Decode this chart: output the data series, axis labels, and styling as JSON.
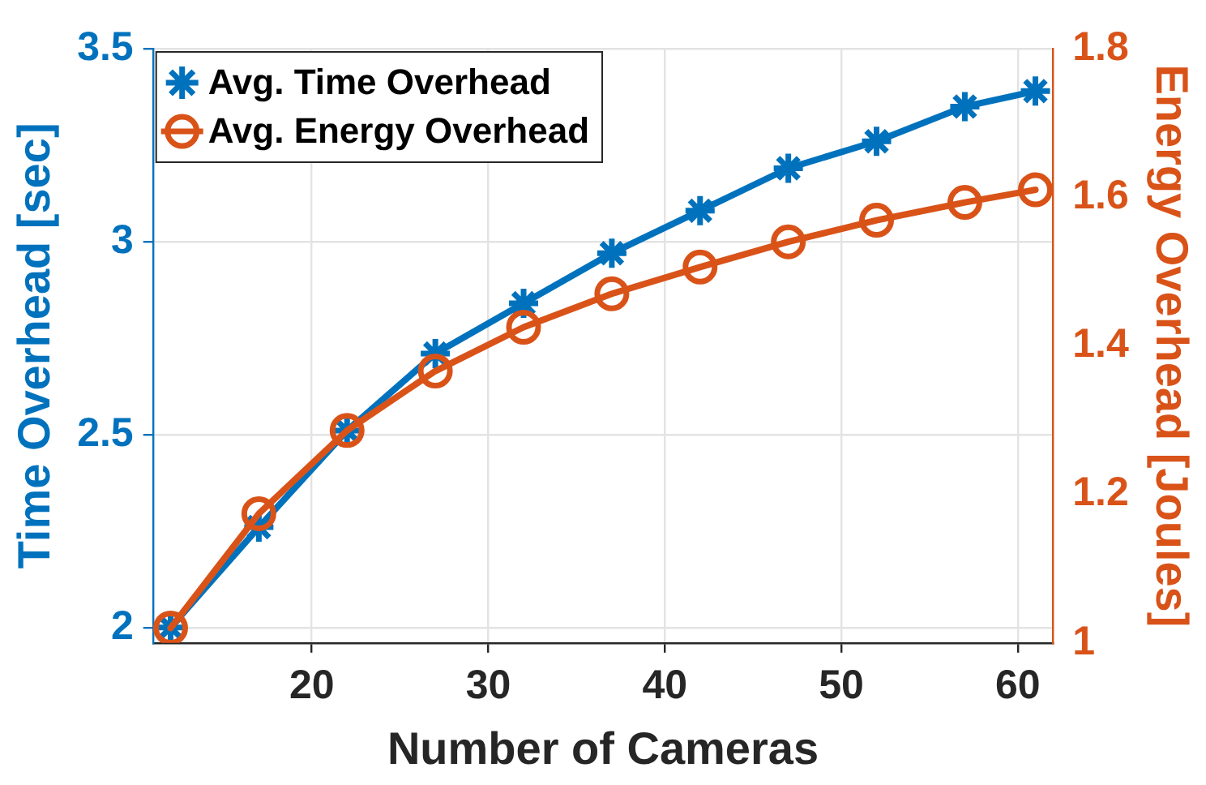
{
  "chart_data": {
    "type": "line",
    "xlabel": "Number of Cameras",
    "ylabel": "Time Overhead [sec]",
    "y2label": "Energy Overhead [Joules]",
    "x": [
      12,
      17,
      22,
      27,
      32,
      37,
      42,
      47,
      52,
      57,
      61
    ],
    "series": [
      {
        "name": "Avg. Time Overhead",
        "color": "#0072bd",
        "marker": "cross",
        "values": [
          2.0,
          2.26,
          2.51,
          2.71,
          2.84,
          2.97,
          3.08,
          3.19,
          3.26,
          3.35,
          3.39
        ]
      },
      {
        "name": "Avg. Energy Overhead",
        "color": "#d95319",
        "marker": "circle",
        "axis": "y2",
        "values": [
          1.02,
          1.174,
          1.286,
          1.366,
          1.425,
          1.47,
          1.506,
          1.54,
          1.569,
          1.593,
          1.61
        ]
      }
    ],
    "xlim": [
      11,
      62
    ],
    "xticks": [
      20,
      30,
      40,
      50,
      60
    ],
    "ylim": [
      1.96,
      3.5
    ],
    "yticks": [
      2,
      2.5,
      3,
      3.5
    ],
    "y2lim": [
      1,
      1.8
    ],
    "y2ticks": [
      1,
      1.2,
      1.4,
      1.6,
      1.8
    ],
    "grid": true,
    "legend": "top left",
    "line_style": "solid"
  }
}
